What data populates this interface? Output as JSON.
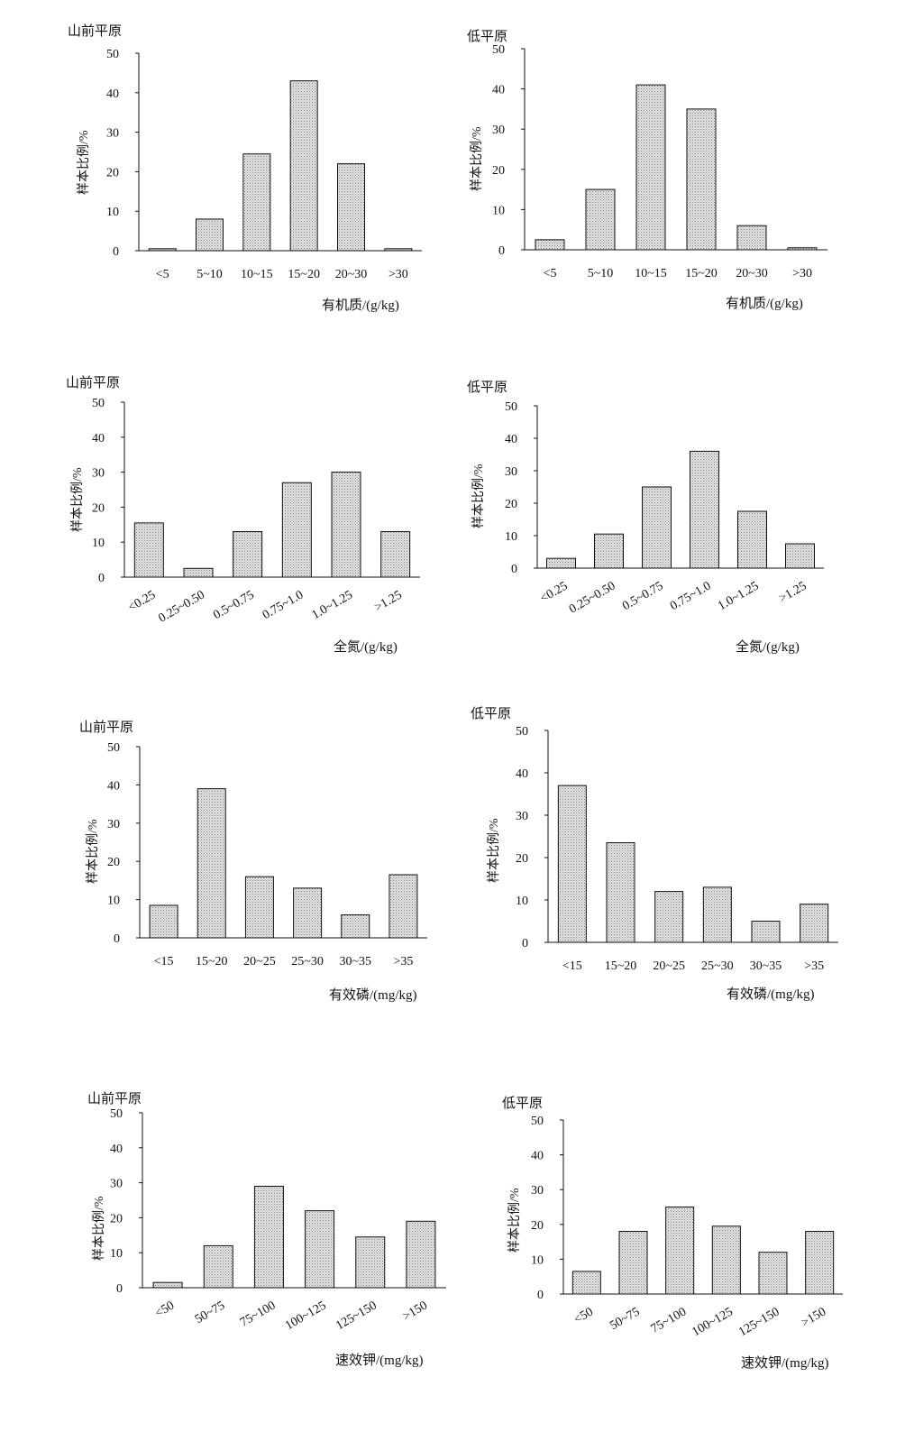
{
  "chart_data": [
    {
      "type": "bar",
      "region": "山前平原",
      "ylabel": "样本比例/%",
      "xlabel": "有机质/(g/kg)",
      "categories": [
        "<5",
        "5~10",
        "10~15",
        "15~20",
        "20~30",
        ">30"
      ],
      "values": [
        0.5,
        8,
        24.5,
        43,
        22,
        0.5
      ],
      "ylim": [
        0,
        50
      ],
      "yticks": [
        0,
        10,
        20,
        30,
        40,
        50
      ],
      "rotated_labels": false
    },
    {
      "type": "bar",
      "region": "低平原",
      "ylabel": "样本比例/%",
      "xlabel": "有机质/(g/kg)",
      "categories": [
        "<5",
        "5~10",
        "10~15",
        "15~20",
        "20~30",
        ">30"
      ],
      "values": [
        2.5,
        15,
        41,
        35,
        6,
        0.5
      ],
      "ylim": [
        0,
        50
      ],
      "yticks": [
        0,
        10,
        20,
        30,
        40,
        50
      ],
      "rotated_labels": false
    },
    {
      "type": "bar",
      "region": "山前平原",
      "ylabel": "样本比例/%",
      "xlabel": "全氮/(g/kg)",
      "categories": [
        "<0.25",
        "0.25~0.50",
        "0.5~0.75",
        "0.75~1.0",
        "1.0~1.25",
        ">1.25"
      ],
      "values": [
        15.5,
        2.5,
        13,
        27,
        30,
        13
      ],
      "ylim": [
        0,
        50
      ],
      "yticks": [
        0,
        10,
        20,
        30,
        40,
        50
      ],
      "rotated_labels": true
    },
    {
      "type": "bar",
      "region": "低平原",
      "ylabel": "样本比例/%",
      "xlabel": "全氮/(g/kg)",
      "categories": [
        "<0.25",
        "0.25~0.50",
        "0.5~0.75",
        "0.75~1.0",
        "1.0~1.25",
        ">1.25"
      ],
      "values": [
        3,
        10.5,
        25,
        36,
        17.5,
        7.5
      ],
      "ylim": [
        0,
        50
      ],
      "yticks": [
        0,
        10,
        20,
        30,
        40,
        50
      ],
      "rotated_labels": true
    },
    {
      "type": "bar",
      "region": "山前平原",
      "ylabel": "样本比例/%",
      "xlabel": "有效磷/(mg/kg)",
      "categories": [
        "<15",
        "15~20",
        "20~25",
        "25~30",
        "30~35",
        ">35"
      ],
      "values": [
        8.5,
        39,
        16,
        13,
        6,
        16.5
      ],
      "ylim": [
        0,
        50
      ],
      "yticks": [
        0,
        10,
        20,
        30,
        40,
        50
      ],
      "rotated_labels": false
    },
    {
      "type": "bar",
      "region": "低平原",
      "ylabel": "样本比例/%",
      "xlabel": "有效磷/(mg/kg)",
      "categories": [
        "<15",
        "15~20",
        "20~25",
        "25~30",
        "30~35",
        ">35"
      ],
      "values": [
        37,
        23.5,
        12,
        13,
        5,
        9
      ],
      "ylim": [
        0,
        50
      ],
      "yticks": [
        0,
        10,
        20,
        30,
        40,
        50
      ],
      "rotated_labels": false
    },
    {
      "type": "bar",
      "region": "山前平原",
      "ylabel": "样本比例/%",
      "xlabel": "速效钾/(mg/kg)",
      "categories": [
        "<50",
        "50~75",
        "75~100",
        "100~125",
        "125~150",
        ">150"
      ],
      "values": [
        1.5,
        12,
        29,
        22,
        14.5,
        19
      ],
      "ylim": [
        0,
        50
      ],
      "yticks": [
        0,
        10,
        20,
        30,
        40,
        50
      ],
      "rotated_labels": true
    },
    {
      "type": "bar",
      "region": "低平原",
      "ylabel": "样本比例/%",
      "xlabel": "速效钾/(mg/kg)",
      "categories": [
        "<50",
        "50~75",
        "75~100",
        "100~125",
        "125~150",
        ">150"
      ],
      "values": [
        6.5,
        18,
        25,
        19.5,
        12,
        18
      ],
      "ylim": [
        0,
        50
      ],
      "yticks": [
        0,
        10,
        20,
        30,
        40,
        50
      ],
      "rotated_labels": true
    }
  ]
}
